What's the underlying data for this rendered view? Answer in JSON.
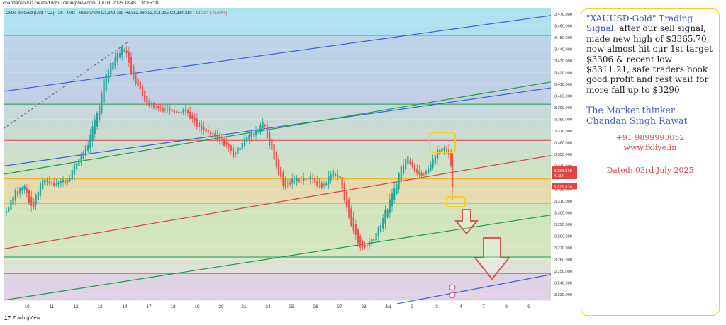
{
  "header": {
    "created": "chandanso2u0 created with TradingView.com, Jul 03, 2025 18:48 UTC+5:30"
  },
  "symbol_line": {
    "symbol": "CFDs on Gold (US$ / OZ) · 2h · TVC · Heikin Ashi",
    "o": "O3,349.799",
    "h": "H3,352.360",
    "l": "L3,311.215",
    "c": "C3,334.219",
    "chg": "−13.204 (−0.39%)"
  },
  "price_tags": {
    "last": "3,334.219",
    "countdown": "41:34",
    "prev": "3,327.310"
  },
  "chart_data": {
    "type": "candlestick",
    "style": "Heikin Ashi",
    "x_ticks": [
      "10",
      "11",
      "12",
      "13",
      "14",
      "17",
      "18",
      "19",
      "20",
      "21",
      "24",
      "25",
      "26",
      "27",
      "28",
      "Jul",
      "2",
      "3",
      "4",
      "7",
      "8",
      "9"
    ],
    "y_ticks": [
      "3,470.000",
      "3,460.000",
      "3,450.000",
      "3,440.000",
      "3,430.000",
      "3,420.000",
      "3,410.000",
      "3,400.000",
      "3,390.000",
      "3,380.000",
      "3,370.000",
      "3,360.000",
      "3,350.000",
      "3,340.000",
      "3,330.000",
      "3,320.000",
      "3,310.000",
      "3,300.000",
      "3,290.000",
      "3,280.000",
      "3,270.000",
      "3,260.000",
      "3,250.000",
      "3,240.000",
      "3,230.000"
    ],
    "ylim": [
      3225,
      3475
    ],
    "horizontal_levels": [
      3452,
      3393,
      3362,
      3329,
      3308,
      3262,
      3248
    ],
    "grid": true,
    "last_price": 3334.219,
    "recent_high": 3365.7,
    "target_1": 3306,
    "recent_low": 3311.21,
    "next_target": 3290
  },
  "note": {
    "title_highlight": "\"XAUUSD-Gold\" Trading Signal",
    "body": ": after our sell signal, made new high of $3365.70, now almost hit our 1st target $3306 & recent low $3311.21, safe traders book good profit and rest wait for more fall up to $3290",
    "author_1": "The Market thinker",
    "author_2": "Chandan Singh Rawat",
    "phone": "+91 9899993052",
    "site": "www.fxlive.in",
    "date": "Dated: 03rd July 2025"
  },
  "logo": {
    "text": "TradingView"
  },
  "colors": {
    "up": "#26a69a",
    "down": "#ef5350",
    "channel": "#3a64d8",
    "accent_green": "#1e9e4a",
    "accent_red": "#e04545",
    "accent_orange": "#f5a623"
  }
}
